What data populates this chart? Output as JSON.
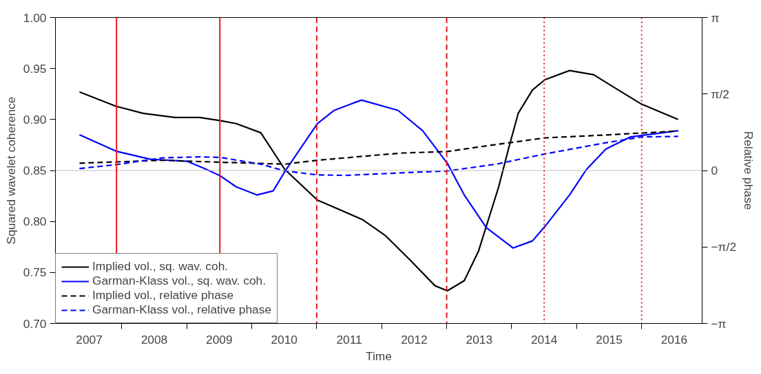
{
  "chart_data": {
    "type": "line",
    "xlabel": "Time",
    "ylabel": "Squared wavelet coherence",
    "y2label": "Relative phase",
    "xlim": [
      2006.98,
      2016.93
    ],
    "xticks": [
      {
        "value": 2007.5,
        "label": "2007"
      },
      {
        "value": 2008.5,
        "label": "2008"
      },
      {
        "value": 2009.5,
        "label": "2009"
      },
      {
        "value": 2010.5,
        "label": "2010"
      },
      {
        "value": 2011.5,
        "label": "2011"
      },
      {
        "value": 2012.5,
        "label": "2012"
      },
      {
        "value": 2013.5,
        "label": "2013"
      },
      {
        "value": 2014.5,
        "label": "2014"
      },
      {
        "value": 2015.5,
        "label": "2015"
      },
      {
        "value": 2016.5,
        "label": "2016"
      },
      {
        "value": 2008,
        "label": null
      },
      {
        "value": 2009,
        "label": null
      },
      {
        "value": 2010,
        "label": null
      },
      {
        "value": 2011,
        "label": null
      },
      {
        "value": 2012,
        "label": null
      },
      {
        "value": 2013,
        "label": null
      },
      {
        "value": 2014,
        "label": null
      },
      {
        "value": 2015,
        "label": null
      },
      {
        "value": 2016,
        "label": null
      }
    ],
    "ylim": [
      0.7,
      1.0
    ],
    "yticks": [
      {
        "value": 0.7,
        "label": "0.70"
      },
      {
        "value": 0.75,
        "label": "0.75"
      },
      {
        "value": 0.8,
        "label": "0.80"
      },
      {
        "value": 0.85,
        "label": "0.85"
      },
      {
        "value": 0.9,
        "label": "0.90"
      },
      {
        "value": 0.95,
        "label": "0.95"
      },
      {
        "value": 1.0,
        "label": "1.00"
      }
    ],
    "y2lim": [
      -3.1416,
      3.1416
    ],
    "y2ticks": [
      {
        "value": -3.1416,
        "label": "−π"
      },
      {
        "value": -1.5708,
        "label": "−π/2"
      },
      0,
      {
        "value": 1.5708,
        "label": "π/2"
      },
      {
        "value": 3.1416,
        "label": "π"
      }
    ],
    "grid": false,
    "legend": "bottom left",
    "series": [
      {
        "name": "Implied vol., sq. wav. coh.",
        "color": "#000000",
        "line_style": "solid",
        "x": [
          2007.35,
          2007.91,
          2008.33,
          2008.82,
          2009.2,
          2009.51,
          2009.76,
          2010.14,
          2010.51,
          2011.01,
          2011.7,
          2012.06,
          2012.44,
          2012.82,
          2013.01,
          2013.27,
          2013.49,
          2013.8,
          2013.95,
          2014.1,
          2014.32,
          2014.51,
          2014.89,
          2015.26,
          2015.64,
          2016.0,
          2016.56
        ],
        "values": [
          0.927,
          0.913,
          0.906,
          0.902,
          0.902,
          0.899,
          0.896,
          0.887,
          0.851,
          0.821,
          0.802,
          0.786,
          0.762,
          0.737,
          0.732,
          0.742,
          0.771,
          0.834,
          0.871,
          0.906,
          0.929,
          0.939,
          0.948,
          0.944,
          0.929,
          0.915,
          0.9
        ]
      },
      {
        "name": "Garman-Klass vol., sq. wav. coh.",
        "color": "#0000ff",
        "line_style": "solid",
        "x": [
          2007.35,
          2007.91,
          2008.44,
          2009.01,
          2009.27,
          2009.51,
          2009.76,
          2010.08,
          2010.33,
          2010.51,
          2011.01,
          2011.27,
          2011.6,
          2011.69,
          2012.25,
          2012.63,
          2013.01,
          2013.27,
          2013.61,
          2014.02,
          2014.32,
          2014.51,
          2014.89,
          2015.15,
          2015.45,
          2015.83,
          2016.56
        ],
        "values": [
          0.885,
          0.869,
          0.861,
          0.859,
          0.852,
          0.845,
          0.834,
          0.826,
          0.83,
          0.849,
          0.896,
          0.909,
          0.917,
          0.919,
          0.909,
          0.889,
          0.857,
          0.826,
          0.794,
          0.774,
          0.781,
          0.795,
          0.826,
          0.851,
          0.871,
          0.883,
          0.889
        ]
      },
      {
        "name": "Implied vol., relative phase",
        "color": "#000000",
        "line_style": "dashed",
        "axis": "y2",
        "x": [
          2007.35,
          2008.63,
          2009.51,
          2010.51,
          2011.01,
          2011.87,
          2012.33,
          2013.01,
          2013.58,
          2014.51,
          2015.45,
          2016.56
        ],
        "values": [
          0.15,
          0.21,
          0.17,
          0.13,
          0.21,
          0.31,
          0.36,
          0.39,
          0.5,
          0.67,
          0.73,
          0.81
        ]
      },
      {
        "name": "Garman-Klass vol., relative phase",
        "color": "#0000ff",
        "line_style": "dashed",
        "axis": "y2",
        "x": [
          2007.35,
          2007.91,
          2008.63,
          2009.2,
          2009.51,
          2010.14,
          2010.51,
          2011.01,
          2011.45,
          2012.44,
          2013.01,
          2013.76,
          2014.51,
          2015.45,
          2016.0,
          2016.56
        ],
        "values": [
          0.04,
          0.12,
          0.26,
          0.28,
          0.27,
          0.13,
          -0.01,
          -0.09,
          -0.1,
          -0.04,
          -0.01,
          0.13,
          0.34,
          0.57,
          0.69,
          0.7
        ]
      }
    ],
    "ref_lines": [
      {
        "axis": "y2",
        "value": 0,
        "color": "#bebebe",
        "line_style": "solid"
      },
      {
        "axis": "x",
        "value": 2007.92,
        "color": "#e8141b",
        "line_style": "solid"
      },
      {
        "axis": "x",
        "value": 2009.51,
        "color": "#e8141b",
        "line_style": "solid"
      },
      {
        "axis": "x",
        "value": 2011.0,
        "color": "#e8141b",
        "line_style": "dashed"
      },
      {
        "axis": "x",
        "value": 2013.0,
        "color": "#e8141b",
        "line_style": "dashed"
      },
      {
        "axis": "x",
        "value": 2014.5,
        "color": "#e8141b",
        "line_style": "dotted"
      },
      {
        "axis": "x",
        "value": 2016.0,
        "color": "#e8141b",
        "line_style": "dotted"
      }
    ]
  }
}
